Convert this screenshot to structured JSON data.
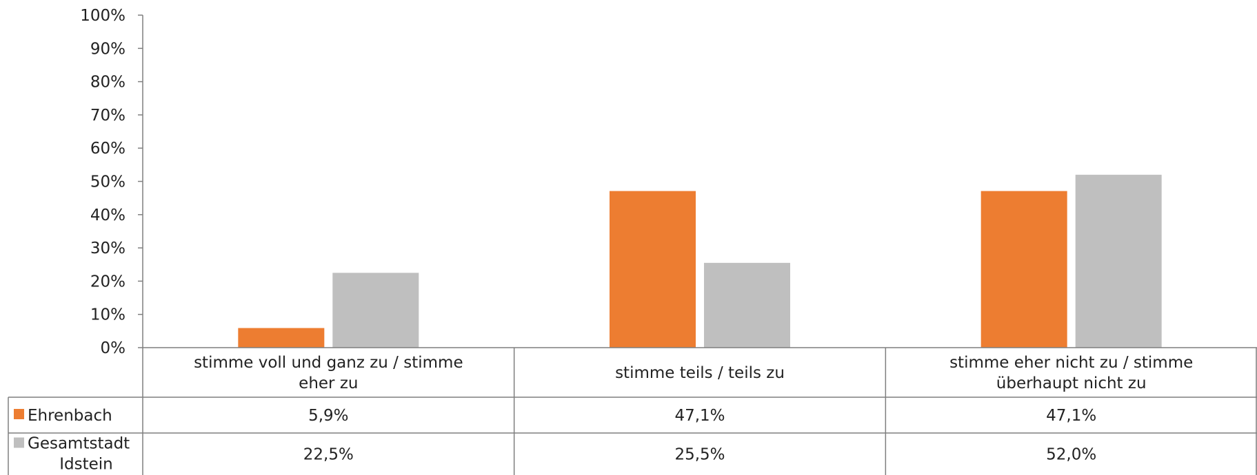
{
  "chart_data": {
    "type": "bar",
    "categories": [
      [
        "stimme voll und ganz zu / stimme",
        "eher zu"
      ],
      [
        "stimme teils / teils zu"
      ],
      [
        "stimme eher nicht zu / stimme",
        "überhaupt nicht zu"
      ]
    ],
    "series": [
      {
        "name": "Ehrenbach",
        "name_lines": [
          "Ehrenbach"
        ],
        "values": [
          5.9,
          47.1,
          47.1
        ],
        "labels": [
          "5,9%",
          "47,1%",
          "47,1%"
        ],
        "color": "#ed7d31"
      },
      {
        "name": "Gesamtstadt Idstein",
        "name_lines": [
          "Gesamtstadt",
          "Idstein"
        ],
        "values": [
          22.5,
          25.5,
          52.0
        ],
        "labels": [
          "22,5%",
          "25,5%",
          "52,0%"
        ],
        "color": "#bfbfbf"
      }
    ],
    "ylim": [
      0,
      100
    ],
    "yticks": [
      0,
      10,
      20,
      30,
      40,
      50,
      60,
      70,
      80,
      90,
      100
    ],
    "ytick_labels": [
      "0%",
      "10%",
      "20%",
      "30%",
      "40%",
      "50%",
      "60%",
      "70%",
      "80%",
      "90%",
      "100%"
    ],
    "grid": false,
    "legend": "data-table",
    "title": "",
    "xlabel": "",
    "ylabel": ""
  }
}
